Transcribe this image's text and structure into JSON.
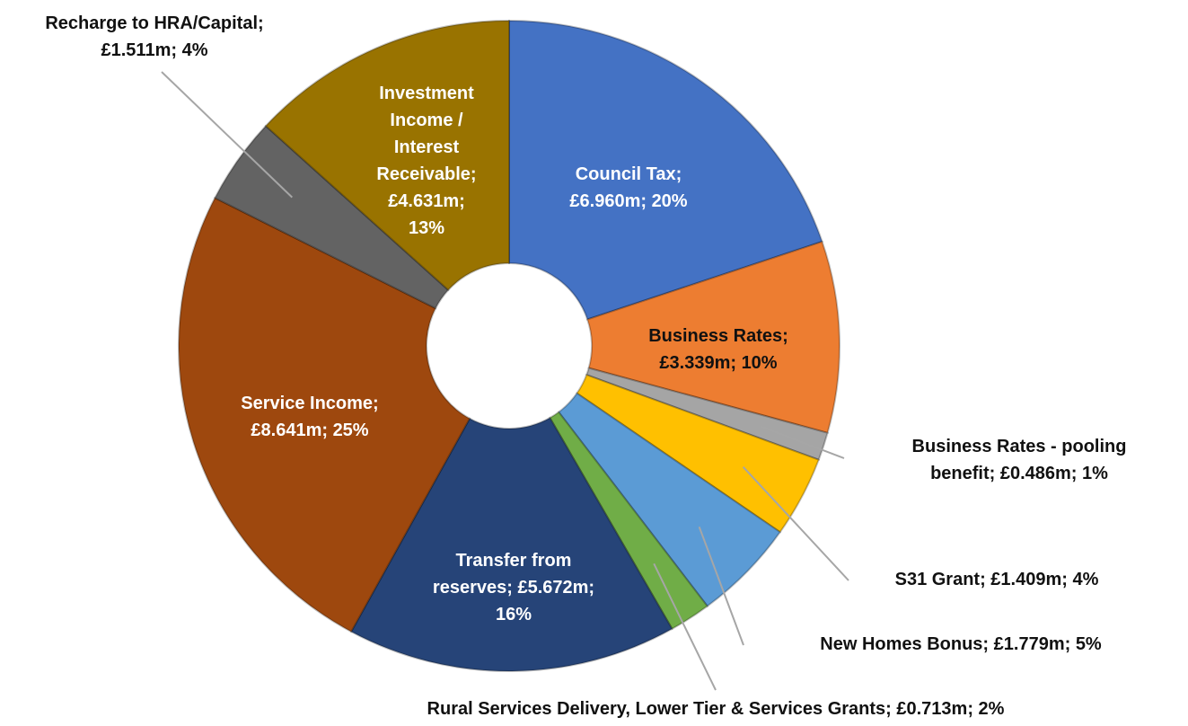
{
  "chart_data": {
    "type": "donut",
    "values": [
      6.96,
      3.339,
      0.486,
      1.409,
      1.779,
      0.713,
      5.672,
      8.641,
      1.511,
      4.631
    ],
    "value_labels": [
      [
        "Council Tax;",
        "£6.960m; 20%"
      ],
      [
        "Business Rates;",
        "£3.339m; 10%"
      ],
      [
        "Business Rates - pooling",
        "benefit; £0.486m; 1%"
      ],
      [
        "S31 Grant; £1.409m; 4%"
      ],
      [
        "New Homes Bonus; £1.779m; 5%"
      ],
      [
        "Rural Services Delivery, Lower Tier & Services Grants; £0.713m; 2%"
      ],
      [
        "Transfer from",
        "reserves; £5.672m;",
        "16%"
      ],
      [
        "Service Income;",
        "£8.641m; 25%"
      ],
      [
        "Recharge to HRA/Capital;",
        "£1.511m; 4%"
      ],
      [
        "Investment",
        "Income /",
        "Interest",
        "Receivable;",
        "£4.631m;",
        "13%"
      ]
    ],
    "colors": [
      "#4472c4",
      "#ed7d31",
      "#a5a5a5",
      "#ffc000",
      "#5b9bd5",
      "#70ad47",
      "#264478",
      "#9e480e",
      "#636363",
      "#997300"
    ]
  }
}
